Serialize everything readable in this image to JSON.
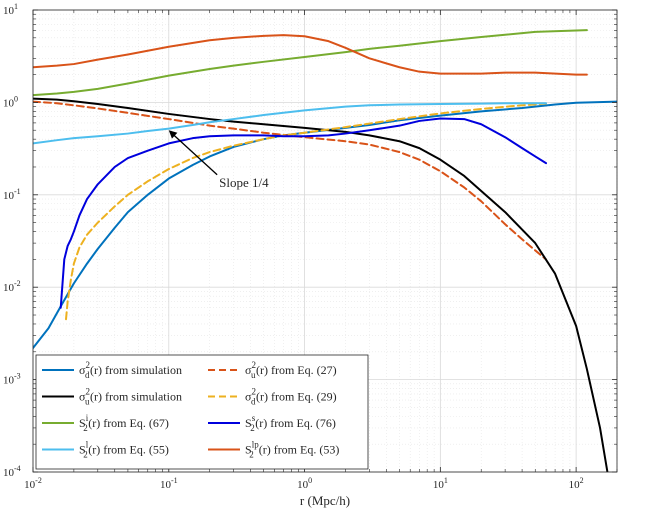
{
  "chart_data": {
    "type": "line",
    "xscale": "log",
    "yscale": "log",
    "xlim": [
      0.01,
      200
    ],
    "ylim": [
      0.0001,
      10
    ],
    "xlabel": "r (Mpc/h)",
    "ylabel": "",
    "grid": true,
    "legend_position": "bottom-left",
    "x_ticks": [
      {
        "base": "10",
        "exp": "-2",
        "value": 0.01
      },
      {
        "base": "10",
        "exp": "-1",
        "value": 0.1
      },
      {
        "base": "10",
        "exp": "0",
        "value": 1
      },
      {
        "base": "10",
        "exp": "1",
        "value": 10
      },
      {
        "base": "10",
        "exp": "2",
        "value": 100
      }
    ],
    "y_ticks": [
      {
        "base": "10",
        "exp": "-4",
        "value": 0.0001
      },
      {
        "base": "10",
        "exp": "-3",
        "value": 0.001
      },
      {
        "base": "10",
        "exp": "-2",
        "value": 0.01
      },
      {
        "base": "10",
        "exp": "-1",
        "value": 0.1
      },
      {
        "base": "10",
        "exp": "0",
        "value": 1
      },
      {
        "base": "10",
        "exp": "1",
        "value": 10
      }
    ],
    "annotation": {
      "text": "Slope 1/4",
      "text_at": [
        0.65,
        0.135
      ],
      "arrow_to": [
        0.1,
        0.5
      ]
    },
    "series": [
      {
        "id": "sd-sim",
        "label": {
          "sym": "σ",
          "sup": "2",
          "sub": "d",
          "rest": "(r) from simulation"
        },
        "color": "#0072BD",
        "dash": "solid",
        "col": 0,
        "x": [
          0.01,
          0.013,
          0.016,
          0.02,
          0.025,
          0.03,
          0.04,
          0.05,
          0.07,
          0.1,
          0.15,
          0.2,
          0.3,
          0.5,
          0.7,
          1,
          2,
          3,
          5,
          10,
          20,
          40,
          70,
          100,
          200
        ],
        "y": [
          0.0022,
          0.0036,
          0.0062,
          0.011,
          0.018,
          0.026,
          0.044,
          0.065,
          0.1,
          0.15,
          0.21,
          0.26,
          0.33,
          0.4,
          0.44,
          0.47,
          0.53,
          0.57,
          0.64,
          0.72,
          0.8,
          0.87,
          0.95,
          0.99,
          1.02
        ]
      },
      {
        "id": "su-eq27",
        "label": {
          "sym": "σ",
          "sup": "2",
          "sub": "u",
          "rest": "(r) from Eq. (27)"
        },
        "color": "#D95319",
        "dash": "dashed",
        "col": 1,
        "x": [
          0.01,
          0.015,
          0.02,
          0.03,
          0.05,
          0.1,
          0.2,
          0.3,
          0.5,
          1,
          2,
          3,
          5,
          7,
          10,
          15,
          20,
          30,
          40,
          50,
          60
        ],
        "y": [
          1.02,
          0.98,
          0.93,
          0.86,
          0.77,
          0.66,
          0.56,
          0.52,
          0.47,
          0.42,
          0.38,
          0.35,
          0.29,
          0.24,
          0.18,
          0.12,
          0.085,
          0.048,
          0.033,
          0.025,
          0.02
        ]
      },
      {
        "id": "su-sim",
        "label": {
          "sym": "σ",
          "sup": "2",
          "sub": "u",
          "rest": "(r) from simulation"
        },
        "color": "#000000",
        "dash": "solid",
        "col": 0,
        "x": [
          0.01,
          0.015,
          0.02,
          0.03,
          0.05,
          0.1,
          0.2,
          0.3,
          0.5,
          1,
          2,
          3,
          5,
          7,
          10,
          15,
          20,
          30,
          50,
          70,
          100,
          120,
          150,
          170
        ],
        "y": [
          1.1,
          1.07,
          1.03,
          0.96,
          0.87,
          0.75,
          0.66,
          0.62,
          0.58,
          0.53,
          0.48,
          0.44,
          0.38,
          0.32,
          0.24,
          0.16,
          0.11,
          0.065,
          0.03,
          0.014,
          0.0038,
          0.0013,
          0.0003,
          0.0001
        ]
      },
      {
        "id": "sd-eq29",
        "label": {
          "sym": "σ",
          "sup": "2",
          "sub": "d",
          "rest": "(r) from Eq. (29)"
        },
        "color": "#EDB120",
        "dash": "dashed",
        "col": 1,
        "x": [
          0.0175,
          0.018,
          0.019,
          0.02,
          0.022,
          0.025,
          0.03,
          0.04,
          0.05,
          0.07,
          0.1,
          0.15,
          0.2,
          0.3,
          0.5,
          0.7,
          1,
          2,
          3,
          5,
          10,
          20,
          40,
          60
        ],
        "y": [
          0.0045,
          0.007,
          0.012,
          0.018,
          0.027,
          0.037,
          0.05,
          0.075,
          0.1,
          0.14,
          0.19,
          0.25,
          0.29,
          0.34,
          0.4,
          0.44,
          0.47,
          0.54,
          0.59,
          0.66,
          0.76,
          0.85,
          0.93,
          0.97
        ]
      },
      {
        "id": "s2i-eq67",
        "label": {
          "sym": "S",
          "sup": "i",
          "sub": "2",
          "rest": "(r) from Eq. (67)"
        },
        "color": "#77AC30",
        "dash": "solid",
        "col": 0,
        "x": [
          0.01,
          0.015,
          0.02,
          0.03,
          0.05,
          0.1,
          0.2,
          0.3,
          0.5,
          1,
          2,
          3,
          5,
          10,
          20,
          30,
          50,
          100,
          120
        ],
        "y": [
          1.2,
          1.25,
          1.3,
          1.4,
          1.6,
          1.95,
          2.3,
          2.5,
          2.75,
          3.1,
          3.5,
          3.8,
          4.1,
          4.6,
          5.1,
          5.4,
          5.8,
          6.0,
          6.05
        ]
      },
      {
        "id": "s2s-eq76",
        "label": {
          "sym": "S",
          "sup": "s",
          "sub": "2",
          "rest": "(r) from Eq. (76)"
        },
        "color": "#0000DD",
        "dash": "solid",
        "col": 1,
        "x": [
          0.016,
          0.0165,
          0.017,
          0.018,
          0.019,
          0.02,
          0.022,
          0.025,
          0.03,
          0.04,
          0.05,
          0.07,
          0.1,
          0.15,
          0.2,
          0.3,
          0.5,
          0.7,
          1,
          1.5,
          2,
          3,
          5,
          7,
          10,
          15,
          20,
          30,
          40,
          50,
          60
        ],
        "y": [
          0.006,
          0.011,
          0.02,
          0.028,
          0.033,
          0.04,
          0.06,
          0.09,
          0.13,
          0.2,
          0.25,
          0.3,
          0.36,
          0.41,
          0.43,
          0.44,
          0.44,
          0.43,
          0.43,
          0.44,
          0.46,
          0.5,
          0.56,
          0.63,
          0.67,
          0.66,
          0.58,
          0.42,
          0.32,
          0.26,
          0.22
        ]
      },
      {
        "id": "s2l-eq55",
        "label": {
          "sym": "S",
          "sup": "l",
          "sub": "2",
          "rest": "(r) from Eq. (55)"
        },
        "color": "#4DBEEE",
        "dash": "solid",
        "col": 0,
        "x": [
          0.01,
          0.015,
          0.02,
          0.03,
          0.05,
          0.07,
          0.1,
          0.15,
          0.2,
          0.3,
          0.5,
          1,
          2,
          3,
          5,
          10,
          20,
          30,
          50,
          60
        ],
        "y": [
          0.36,
          0.39,
          0.41,
          0.43,
          0.46,
          0.49,
          0.52,
          0.57,
          0.61,
          0.66,
          0.73,
          0.82,
          0.9,
          0.93,
          0.95,
          0.96,
          0.97,
          0.98,
          0.98,
          0.98
        ]
      },
      {
        "id": "s2lp-eq53",
        "label": {
          "sym": "S",
          "sup": "lp",
          "sub": "2",
          "rest": "(r) from Eq. (53)"
        },
        "color": "#D95319",
        "dash": "solid",
        "col": 1,
        "x": [
          0.01,
          0.015,
          0.02,
          0.03,
          0.05,
          0.1,
          0.2,
          0.3,
          0.5,
          0.7,
          1,
          1.5,
          2,
          3,
          5,
          7,
          10,
          20,
          30,
          50,
          100,
          120
        ],
        "y": [
          2.4,
          2.5,
          2.6,
          2.9,
          3.3,
          4.0,
          4.7,
          5.0,
          5.25,
          5.35,
          5.2,
          4.6,
          3.9,
          3.0,
          2.4,
          2.15,
          2.05,
          2.05,
          2.1,
          2.1,
          2.0,
          2.0
        ]
      }
    ]
  }
}
